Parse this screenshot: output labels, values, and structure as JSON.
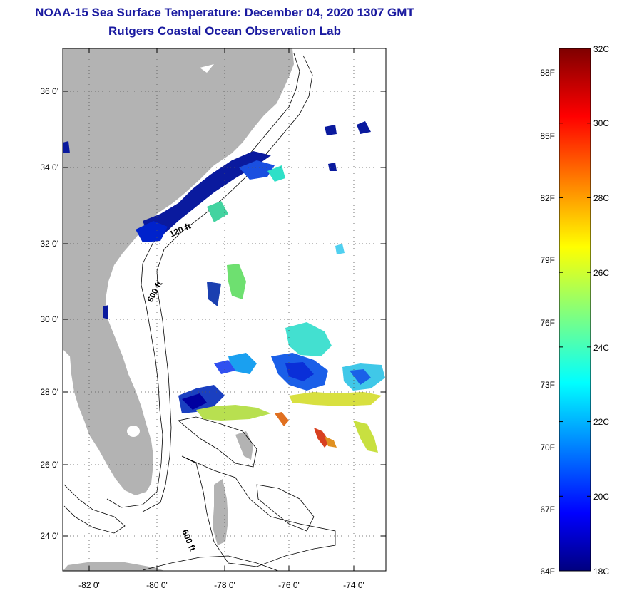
{
  "header": {
    "title": "NOAA-15 Sea Surface Temperature:  December 04, 2020 1307 GMT",
    "subtitle": "Rutgers Coastal Ocean Observation Lab"
  },
  "map": {
    "lon_range": [
      -83,
      -73
    ],
    "lat_range": [
      23,
      37
    ],
    "lon_ticks": [
      "-82 0'",
      "-80 0'",
      "-78 0'",
      "-76 0'",
      "-74 0'"
    ],
    "lat_ticks": [
      "36 0'",
      "34 0'",
      "32 0'",
      "30 0'",
      "28 0'",
      "26 0'",
      "24 0'"
    ],
    "contour_labels": [
      "120 ft",
      "600 ft",
      "600 ft"
    ],
    "land_color": "#b3b3b3",
    "grid": "dotted"
  },
  "colorbar": {
    "fahrenheit_labels": [
      "88F",
      "85F",
      "82F",
      "79F",
      "76F",
      "73F",
      "70F",
      "67F",
      "64F"
    ],
    "celsius_labels": [
      "32C",
      "30C",
      "28C",
      "26C",
      "24C",
      "22C",
      "20C",
      "18C"
    ],
    "range_c": [
      18,
      32
    ],
    "colormap": "jet"
  }
}
